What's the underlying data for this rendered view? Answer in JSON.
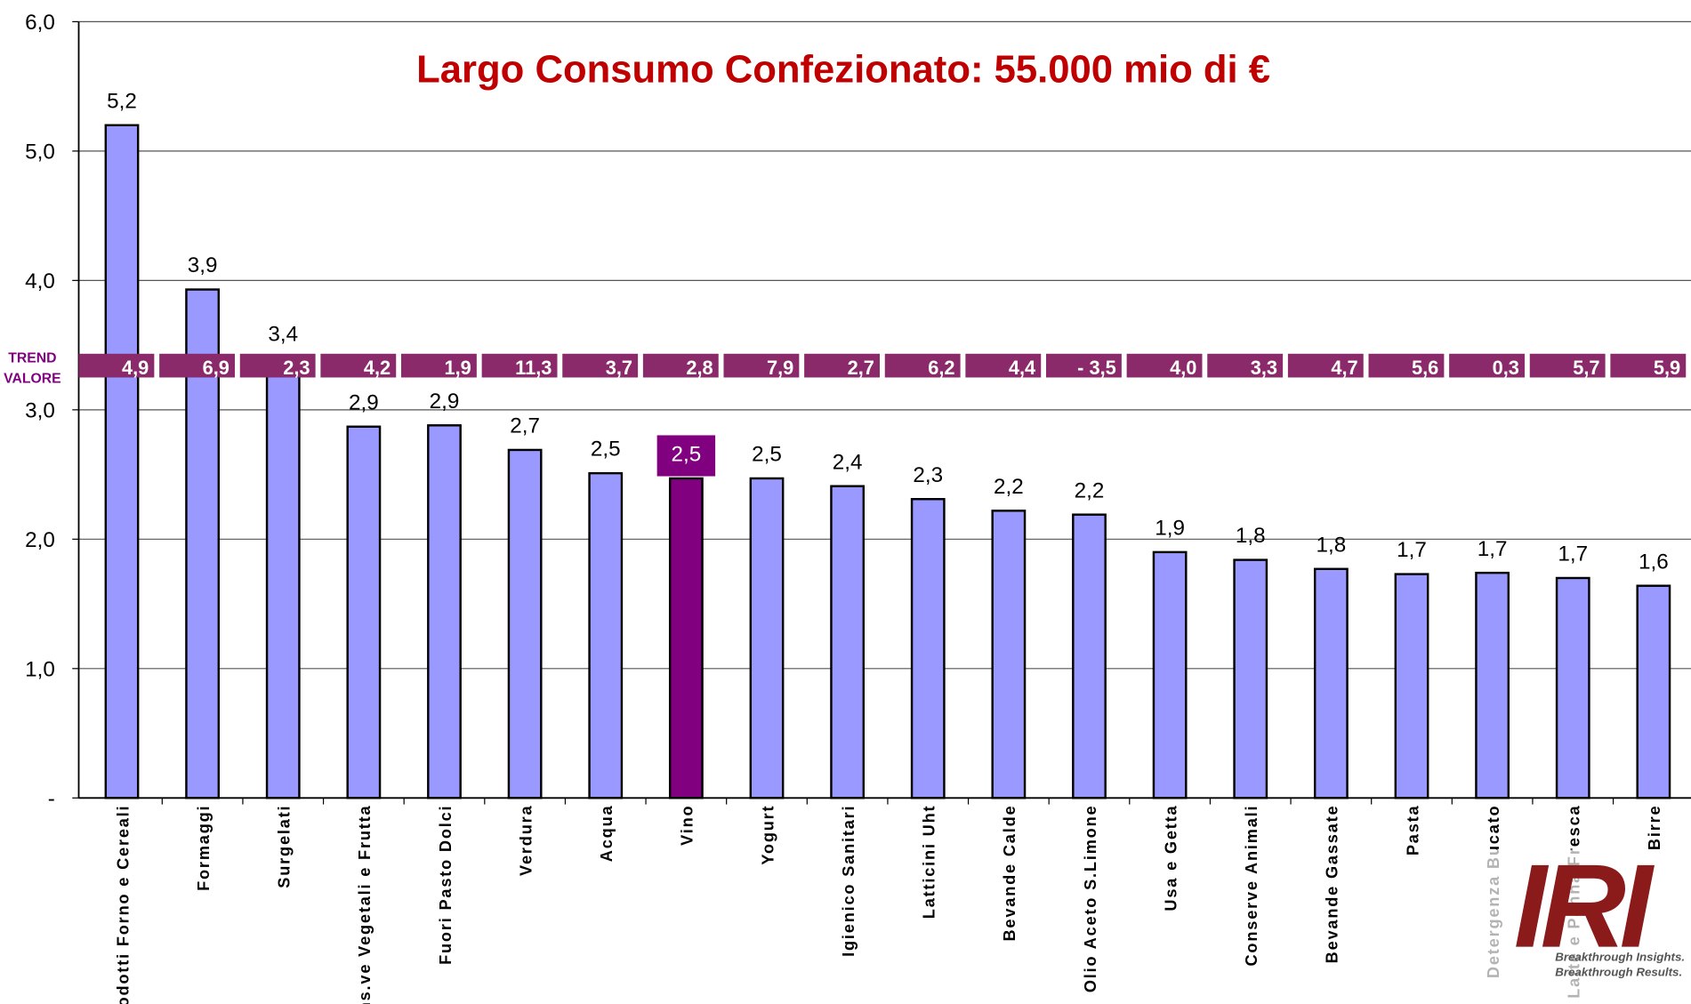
{
  "chart_data": {
    "type": "bar",
    "title": "Largo Consumo Confezionato: 55.000 mio di €",
    "categories": [
      "Prodotti Forno e Cereali",
      "Formaggi",
      "Surgelati",
      "Cons.ve Vegetali e Frutta",
      "Fuori Pasto Dolci",
      "Verdura",
      "Acqua",
      "Vino",
      "Yogurt",
      "Igienico Sanitari",
      "Latticini Uht",
      "Bevande Calde",
      "Olio Aceto S.Limone",
      "Usa e Getta",
      "Conserve Animali",
      "Bevande Gassate",
      "Pasta",
      "Detergenza Bucato",
      "Latte e Panna Fresca",
      "Birre"
    ],
    "values": [
      5.2,
      3.93,
      3.4,
      2.87,
      2.88,
      2.69,
      2.51,
      2.47,
      2.47,
      2.41,
      2.31,
      2.22,
      2.19,
      1.9,
      1.84,
      1.77,
      1.73,
      1.74,
      1.7,
      1.64
    ],
    "value_labels": [
      "5,2",
      "3,9",
      "3,4",
      "2,9",
      "2,9",
      "2,7",
      "2,5",
      "2,5",
      "2,5",
      "2,4",
      "2,3",
      "2,2",
      "2,2",
      "1,9",
      "1,8",
      "1,8",
      "1,7",
      "1,7",
      "1,7",
      "1,6"
    ],
    "colors": [
      "#9999ff",
      "#9999ff",
      "#9999ff",
      "#9999ff",
      "#9999ff",
      "#9999ff",
      "#9999ff",
      "#800080",
      "#9999ff",
      "#9999ff",
      "#9999ff",
      "#9999ff",
      "#9999ff",
      "#9999ff",
      "#9999ff",
      "#9999ff",
      "#9999ff",
      "#9999ff",
      "#9999ff",
      "#9999ff"
    ],
    "ylim": [
      0,
      6
    ],
    "yticks": [
      {
        "value": 0,
        "label": "-"
      },
      {
        "value": 1,
        "label": "1,0"
      },
      {
        "value": 2,
        "label": "2,0"
      },
      {
        "value": 3,
        "label": "3,0"
      },
      {
        "value": 4,
        "label": "4,0"
      },
      {
        "value": 5,
        "label": "5,0"
      },
      {
        "value": 6,
        "label": "6,0"
      }
    ],
    "grid": true,
    "trend": {
      "label": [
        "TREND",
        "VALORE"
      ],
      "color": "#8b2a6b",
      "values": [
        4.9,
        6.9,
        2.3,
        4.2,
        1.9,
        11.3,
        3.7,
        2.8,
        7.9,
        2.7,
        6.2,
        4.4,
        -3.5,
        4.0,
        3.3,
        4.7,
        5.6,
        0.3,
        5.7,
        5.9
      ],
      "value_labels": [
        "4,9",
        "6,9",
        "2,3",
        "4,2",
        "1,9",
        "11,3",
        "3,7",
        "2,8",
        "7,9",
        "2,7",
        "6,2",
        "4,4",
        "-  3,5",
        "4,0",
        "3,3",
        "4,7",
        "5,6",
        "0,3",
        "5,7",
        "5,9"
      ]
    },
    "logo": {
      "text": "IRI",
      "tagline": [
        "Breakthrough Insights.",
        "Breakthrough Results."
      ]
    }
  }
}
